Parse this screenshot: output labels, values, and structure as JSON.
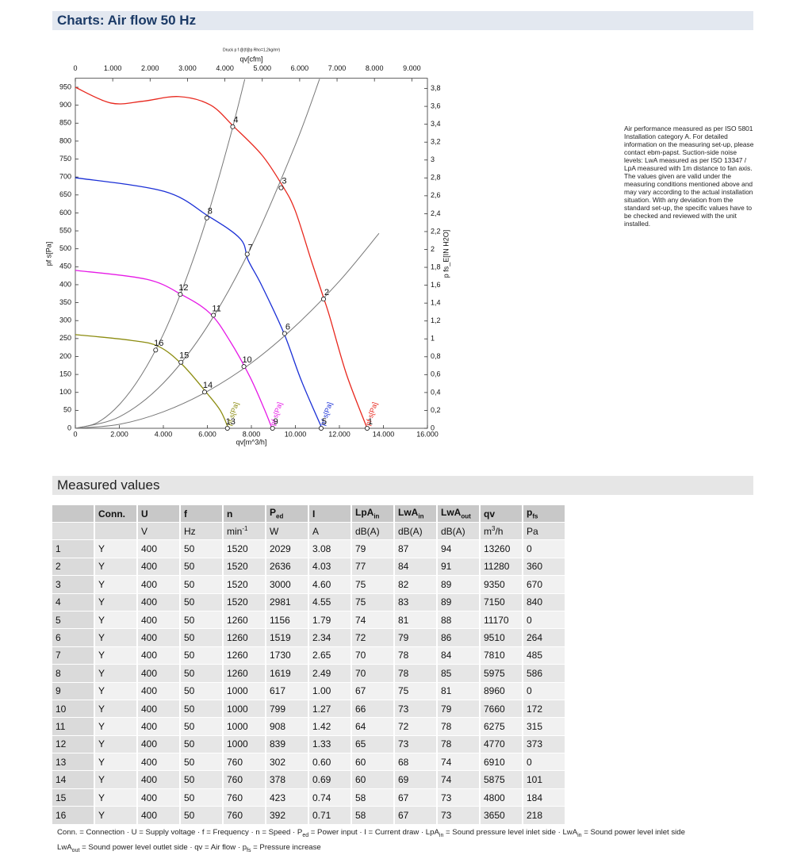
{
  "header": {
    "title": "Charts: Air flow 50 Hz"
  },
  "chart_data": {
    "type": "line",
    "title": "Druck p f @(f@p Rho=1,2kg/m³)",
    "x_label": "qv[m^3/h]",
    "x2_label": "qv[cfm]",
    "y_label": "pf s[Pa]",
    "y2_label": "p fs_E[IN H2O]",
    "xlim": [
      0,
      16000
    ],
    "xticks": [
      0,
      {
        "value": 2000,
        "label": "2.000"
      },
      {
        "value": 4000,
        "label": "4.000"
      },
      {
        "value": 6000,
        "label": "6.000"
      },
      {
        "value": 8000,
        "label": "8.000"
      },
      {
        "value": 10000,
        "label": "10.000"
      },
      {
        "value": 12000,
        "label": "12.000"
      },
      {
        "value": 14000,
        "label": "14.000"
      },
      {
        "value": 16000,
        "label": "16.000"
      }
    ],
    "x2lim": [
      0,
      9417
    ],
    "x2ticks": [
      0,
      {
        "value": 1000,
        "label": "1.000"
      },
      {
        "value": 2000,
        "label": "2.000"
      },
      {
        "value": 3000,
        "label": "3.000"
      },
      {
        "value": 4000,
        "label": "4.000"
      },
      {
        "value": 5000,
        "label": "5.000"
      },
      {
        "value": 6000,
        "label": "6.000"
      },
      {
        "value": 7000,
        "label": "7.000"
      },
      {
        "value": 8000,
        "label": "8.000"
      },
      {
        "value": 9000,
        "label": "9.000"
      }
    ],
    "ylim": [
      0,
      975
    ],
    "yticks": [
      0,
      50,
      100,
      150,
      200,
      250,
      300,
      350,
      400,
      450,
      500,
      550,
      600,
      650,
      700,
      750,
      800,
      850,
      900,
      950
    ],
    "y2lim": [
      0,
      3.914
    ],
    "y2ticks": [
      0,
      {
        "value": 0.2,
        "label": "0,2"
      },
      {
        "value": 0.4,
        "label": "0,4"
      },
      {
        "value": 0.6,
        "label": "0,6"
      },
      {
        "value": 0.8,
        "label": "0,8"
      },
      1,
      {
        "value": 1.2,
        "label": "1,2"
      },
      {
        "value": 1.4,
        "label": "1,4"
      },
      {
        "value": 1.6,
        "label": "1,6"
      },
      {
        "value": 1.8,
        "label": "1,8"
      },
      2,
      {
        "value": 2.2,
        "label": "2,2"
      },
      {
        "value": 2.4,
        "label": "2,4"
      },
      {
        "value": 2.6,
        "label": "2,6"
      },
      {
        "value": 2.8,
        "label": "2,8"
      },
      3,
      {
        "value": 3.2,
        "label": "3,2"
      },
      {
        "value": 3.4,
        "label": "3,4"
      },
      {
        "value": 3.6,
        "label": "3,6"
      },
      {
        "value": 3.8,
        "label": "3,8"
      }
    ],
    "series": [
      {
        "name": "pf s[Pa]",
        "color": "#e8281e",
        "x": [
          0,
          1620,
          3060,
          4685,
          6126,
          7207,
          8468,
          9370,
          9982,
          10739,
          11280,
          11568,
          12324,
          13260
        ],
        "values": [
          950,
          906,
          911,
          924,
          901,
          840,
          762,
          680,
          608,
          464,
          364,
          309,
          150,
          0
        ]
      },
      {
        "name": "pf s[Pa]",
        "color": "#1a2fd6",
        "x": [
          0,
          4036,
          6018,
          7495,
          7856,
          8468,
          9477,
          10270,
          11207
        ],
        "values": [
          698,
          660,
          592,
          528,
          468,
          398,
          265,
          133,
          0
        ]
      },
      {
        "name": "pf s[Pa]",
        "color": "#e619e6",
        "x": [
          0,
          3243,
          4865,
          6126,
          7027,
          7928,
          8577,
          8937
        ],
        "values": [
          440,
          415,
          371,
          320,
          243,
          144,
          55,
          0
        ]
      },
      {
        "name": "pf s[Pa]",
        "color": "#8c8c10",
        "x": [
          0,
          2523,
          3784,
          4865,
          6018,
          6595,
          6955
        ],
        "values": [
          261,
          245,
          228,
          177,
          95,
          49,
          0
        ]
      },
      {
        "color": "#777777",
        "x": [
          0,
          1000,
          2000,
          3000,
          4000,
          5000,
          6000,
          7000,
          7700
        ],
        "values": [
          0,
          16,
          66,
          148,
          262,
          410,
          590,
          804,
          972
        ]
      },
      {
        "color": "#777777",
        "x": [
          0,
          2000,
          4000,
          6000,
          8000,
          10000,
          11100
        ],
        "values": [
          0,
          32,
          126,
          284,
          506,
          790,
          973
        ]
      },
      {
        "color": "#777777",
        "x": [
          0,
          2000,
          4000,
          6000,
          8000,
          10000,
          12000,
          13800
        ],
        "values": [
          0,
          11,
          46,
          103,
          182,
          285,
          410,
          543
        ]
      }
    ],
    "points": [
      {
        "label": "1",
        "x": 13260,
        "y": 0
      },
      {
        "label": "2",
        "x": 11280,
        "y": 360
      },
      {
        "label": "3",
        "x": 9350,
        "y": 670
      },
      {
        "label": "4",
        "x": 7150,
        "y": 840
      },
      {
        "label": "5",
        "x": 11170,
        "y": 0
      },
      {
        "label": "6",
        "x": 9510,
        "y": 264
      },
      {
        "label": "7",
        "x": 7810,
        "y": 485
      },
      {
        "label": "8",
        "x": 5975,
        "y": 586
      },
      {
        "label": "9",
        "x": 8960,
        "y": 0
      },
      {
        "label": "10",
        "x": 7660,
        "y": 172
      },
      {
        "label": "11",
        "x": 6275,
        "y": 315
      },
      {
        "label": "12",
        "x": 4770,
        "y": 373
      },
      {
        "label": "13",
        "x": 6910,
        "y": 0
      },
      {
        "label": "14",
        "x": 5875,
        "y": 101
      },
      {
        "label": "15",
        "x": 4800,
        "y": 184
      },
      {
        "label": "16",
        "x": 3650,
        "y": 218
      }
    ]
  },
  "note": "Air performance measured as per ISO 5801 Installation category A. For detailed information on the measuring set-up, please contact ebm-papst. Suction-side noise levels: LwA measured as per ISO 13347 / LpA measured with 1m distance to fan axis. The values given are valid under the measuring conditions mentioned above and may vary according to the actual installation situation. With any deviation from the standard set-up, the specific values have to be checked and reviewed with the unit installed.",
  "section": {
    "title": "Measured values"
  },
  "table": {
    "header": [
      null,
      "Conn.",
      "U",
      "f",
      "n",
      {
        "text": "P",
        "sub": "ed"
      },
      "I",
      {
        "text": "LpA",
        "sub": "in"
      },
      {
        "text": "LwA",
        "sub": "in"
      },
      {
        "text": "LwA",
        "sub": "out"
      },
      "qv",
      {
        "text": "p",
        "sub": "fs"
      }
    ],
    "units": [
      null,
      null,
      "V",
      "Hz",
      {
        "text": "min",
        "sup": "-1"
      },
      "W",
      "A",
      "dB(A)",
      "dB(A)",
      "dB(A)",
      {
        "text": "m",
        "sup": "3",
        "rest": "/h"
      },
      "Pa"
    ],
    "rows": [
      [
        "1",
        "Y",
        "400",
        "50",
        "1520",
        "2029",
        "3.08",
        "79",
        "87",
        "94",
        "13260",
        "0"
      ],
      [
        "2",
        "Y",
        "400",
        "50",
        "1520",
        "2636",
        "4.03",
        "77",
        "84",
        "91",
        "11280",
        "360"
      ],
      [
        "3",
        "Y",
        "400",
        "50",
        "1520",
        "3000",
        "4.60",
        "75",
        "82",
        "89",
        "9350",
        "670"
      ],
      [
        "4",
        "Y",
        "400",
        "50",
        "1520",
        "2981",
        "4.55",
        "75",
        "83",
        "89",
        "7150",
        "840"
      ],
      [
        "5",
        "Y",
        "400",
        "50",
        "1260",
        "1156",
        "1.79",
        "74",
        "81",
        "88",
        "11170",
        "0"
      ],
      [
        "6",
        "Y",
        "400",
        "50",
        "1260",
        "1519",
        "2.34",
        "72",
        "79",
        "86",
        "9510",
        "264"
      ],
      [
        "7",
        "Y",
        "400",
        "50",
        "1260",
        "1730",
        "2.65",
        "70",
        "78",
        "84",
        "7810",
        "485"
      ],
      [
        "8",
        "Y",
        "400",
        "50",
        "1260",
        "1619",
        "2.49",
        "70",
        "78",
        "85",
        "5975",
        "586"
      ],
      [
        "9",
        "Y",
        "400",
        "50",
        "1000",
        "617",
        "1.00",
        "67",
        "75",
        "81",
        "8960",
        "0"
      ],
      [
        "10",
        "Y",
        "400",
        "50",
        "1000",
        "799",
        "1.27",
        "66",
        "73",
        "79",
        "7660",
        "172"
      ],
      [
        "11",
        "Y",
        "400",
        "50",
        "1000",
        "908",
        "1.42",
        "64",
        "72",
        "78",
        "6275",
        "315"
      ],
      [
        "12",
        "Y",
        "400",
        "50",
        "1000",
        "839",
        "1.33",
        "65",
        "73",
        "78",
        "4770",
        "373"
      ],
      [
        "13",
        "Y",
        "400",
        "50",
        "760",
        "302",
        "0.60",
        "60",
        "68",
        "74",
        "6910",
        "0"
      ],
      [
        "14",
        "Y",
        "400",
        "50",
        "760",
        "378",
        "0.69",
        "60",
        "69",
        "74",
        "5875",
        "101"
      ],
      [
        "15",
        "Y",
        "400",
        "50",
        "760",
        "423",
        "0.74",
        "58",
        "67",
        "73",
        "4800",
        "184"
      ],
      [
        "16",
        "Y",
        "400",
        "50",
        "760",
        "392",
        "0.71",
        "58",
        "67",
        "73",
        "3650",
        "218"
      ]
    ]
  },
  "footnotes": [
    [
      {
        "text": "Conn. = Connection · U = Supply voltage · f = Frequency · n = Speed · P"
      },
      {
        "sub": "ed"
      },
      {
        "text": " = Power input · I = Current draw · LpA"
      },
      {
        "sub": "in"
      },
      {
        "text": " = Sound pressure level inlet side · LwA"
      },
      {
        "sub": "in"
      },
      {
        "text": " = Sound power level inlet side"
      }
    ],
    [
      {
        "text": "LwA"
      },
      {
        "sub": "out"
      },
      {
        "text": " = Sound power level outlet side · qv = Air flow · p"
      },
      {
        "sub": "fs"
      },
      {
        "text": " = Pressure increase"
      }
    ]
  ]
}
